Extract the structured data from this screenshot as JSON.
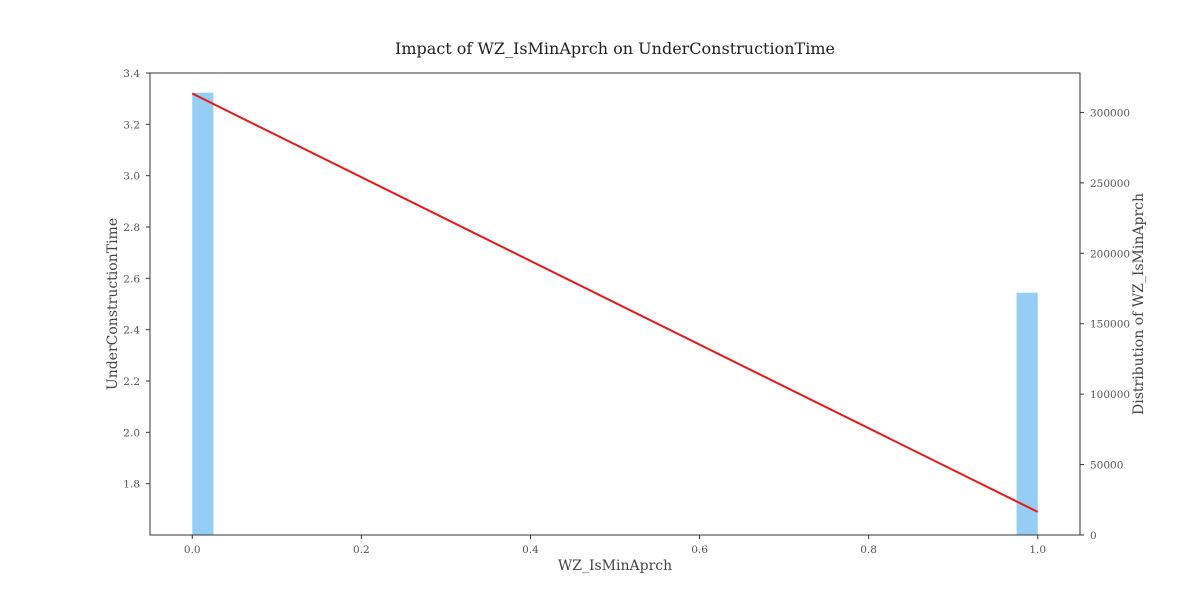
{
  "chart_data": {
    "type": "bar",
    "title": "Impact of WZ_IsMinAprch on UnderConstructionTime",
    "xlabel": "WZ_IsMinAprch",
    "ylabel": "UnderConstructionTime",
    "y2label": "Distribution of WZ_IsMinAprch",
    "xlim": [
      -0.05,
      1.05
    ],
    "ylim": [
      1.6,
      3.4
    ],
    "y2lim": [
      0,
      328000
    ],
    "x_ticks": [
      {
        "value": 0.0,
        "label": "0.0"
      },
      {
        "value": 0.2,
        "label": "0.2"
      },
      {
        "value": 0.4,
        "label": "0.4"
      },
      {
        "value": 0.6,
        "label": "0.6"
      },
      {
        "value": 0.8,
        "label": "0.8"
      },
      {
        "value": 1.0,
        "label": "1.0"
      }
    ],
    "y_ticks": [
      {
        "value": 1.8,
        "label": "1.8"
      },
      {
        "value": 2.0,
        "label": "2.0"
      },
      {
        "value": 2.2,
        "label": "2.2"
      },
      {
        "value": 2.4,
        "label": "2.4"
      },
      {
        "value": 2.6,
        "label": "2.6"
      },
      {
        "value": 2.8,
        "label": "2.8"
      },
      {
        "value": 3.0,
        "label": "3.0"
      },
      {
        "value": 3.2,
        "label": "3.2"
      },
      {
        "value": 3.4,
        "label": "3.4"
      }
    ],
    "y2_ticks": [
      {
        "value": 0,
        "label": "0"
      },
      {
        "value": 50000,
        "label": "50000"
      },
      {
        "value": 100000,
        "label": "100000"
      },
      {
        "value": 150000,
        "label": "150000"
      },
      {
        "value": 200000,
        "label": "200000"
      },
      {
        "value": 250000,
        "label": "250000"
      },
      {
        "value": 300000,
        "label": "300000"
      }
    ],
    "histogram": {
      "axis": "y2",
      "bin_width": 0.025,
      "bars": [
        {
          "x_start": 0.0,
          "count": 314000
        },
        {
          "x_start": 0.975,
          "count": 172000
        }
      ]
    },
    "series": [
      {
        "type": "line",
        "axis": "y",
        "x": [
          0.0,
          1.0
        ],
        "y": [
          3.32,
          1.69
        ]
      }
    ],
    "colors": {
      "bars": "#95cdf5",
      "line": "#e81818",
      "axes": "#333333"
    },
    "grid": false
  }
}
